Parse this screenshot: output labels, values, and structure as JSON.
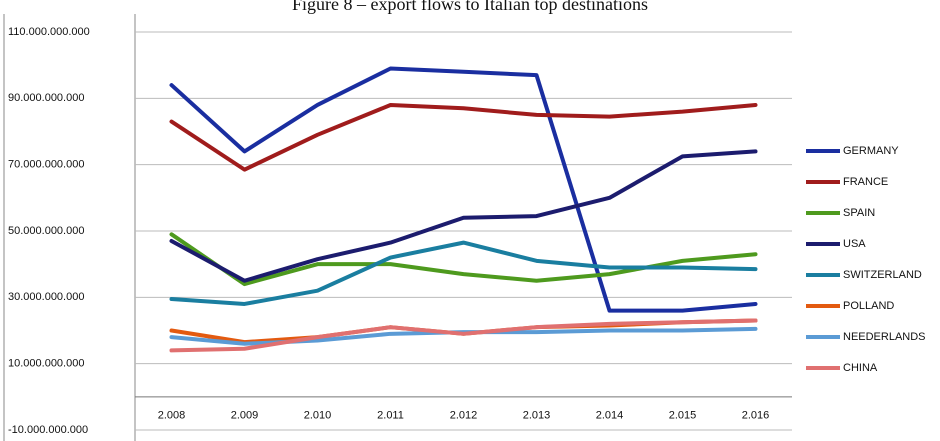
{
  "chart_data": {
    "type": "line",
    "title": "Figure 8 – export flows to Italian top destinations",
    "categories": [
      "2.008",
      "2.009",
      "2.010",
      "2.011",
      "2.012",
      "2.013",
      "2.014",
      "2.015",
      "2.016"
    ],
    "ylim": [
      -10000000000,
      110000000000
    ],
    "yticks": [
      {
        "value": -10000000000,
        "label": "-10.000.000.000"
      },
      {
        "value": 10000000000,
        "label": "10.000.000.000"
      },
      {
        "value": 30000000000,
        "label": "30.000.000.000"
      },
      {
        "value": 50000000000,
        "label": "50.000.000.000"
      },
      {
        "value": 70000000000,
        "label": "70.000.000.000"
      },
      {
        "value": 90000000000,
        "label": "90.000.000.000"
      },
      {
        "value": 110000000000,
        "label": "110.000.000.000"
      }
    ],
    "grid": true,
    "legend": "right",
    "series": [
      {
        "name": "GERMANY",
        "color": "#1a2ea0",
        "values": [
          94000000000,
          74000000000,
          88000000000,
          99000000000,
          98000000000,
          97000000000,
          26000000000,
          26000000000,
          28000000000
        ]
      },
      {
        "name": "FRANCE",
        "color": "#a01c1c",
        "values": [
          83000000000,
          68500000000,
          79000000000,
          88000000000,
          87000000000,
          85000000000,
          84500000000,
          86000000000,
          88000000000
        ]
      },
      {
        "name": "SPAIN",
        "color": "#4e9a1e",
        "values": [
          49000000000,
          34000000000,
          40000000000,
          40000000000,
          37000000000,
          35000000000,
          37000000000,
          41000000000,
          43000000000
        ]
      },
      {
        "name": "USA",
        "color": "#1c1c6e",
        "values": [
          47000000000,
          35000000000,
          41500000000,
          46500000000,
          54000000000,
          54500000000,
          60000000000,
          72500000000,
          74000000000
        ]
      },
      {
        "name": "SWITZERLAND",
        "color": "#1a7ea0",
        "values": [
          29500000000,
          28000000000,
          32000000000,
          42000000000,
          46500000000,
          41000000000,
          39000000000,
          39000000000,
          38500000000
        ]
      },
      {
        "name": "POLLAND",
        "color": "#e35a10",
        "values": [
          20000000000,
          16500000000,
          18000000000,
          21000000000,
          19000000000,
          21000000000,
          21500000000,
          22500000000,
          23000000000
        ]
      },
      {
        "name": "NEEDERLANDS",
        "color": "#5b9bd5",
        "values": [
          18000000000,
          16000000000,
          17000000000,
          19000000000,
          19500000000,
          19500000000,
          20000000000,
          20000000000,
          20500000000
        ]
      },
      {
        "name": "CHINA",
        "color": "#e07070",
        "values": [
          14000000000,
          14500000000,
          18000000000,
          21000000000,
          19000000000,
          21000000000,
          22000000000,
          22500000000,
          23000000000
        ]
      }
    ]
  }
}
